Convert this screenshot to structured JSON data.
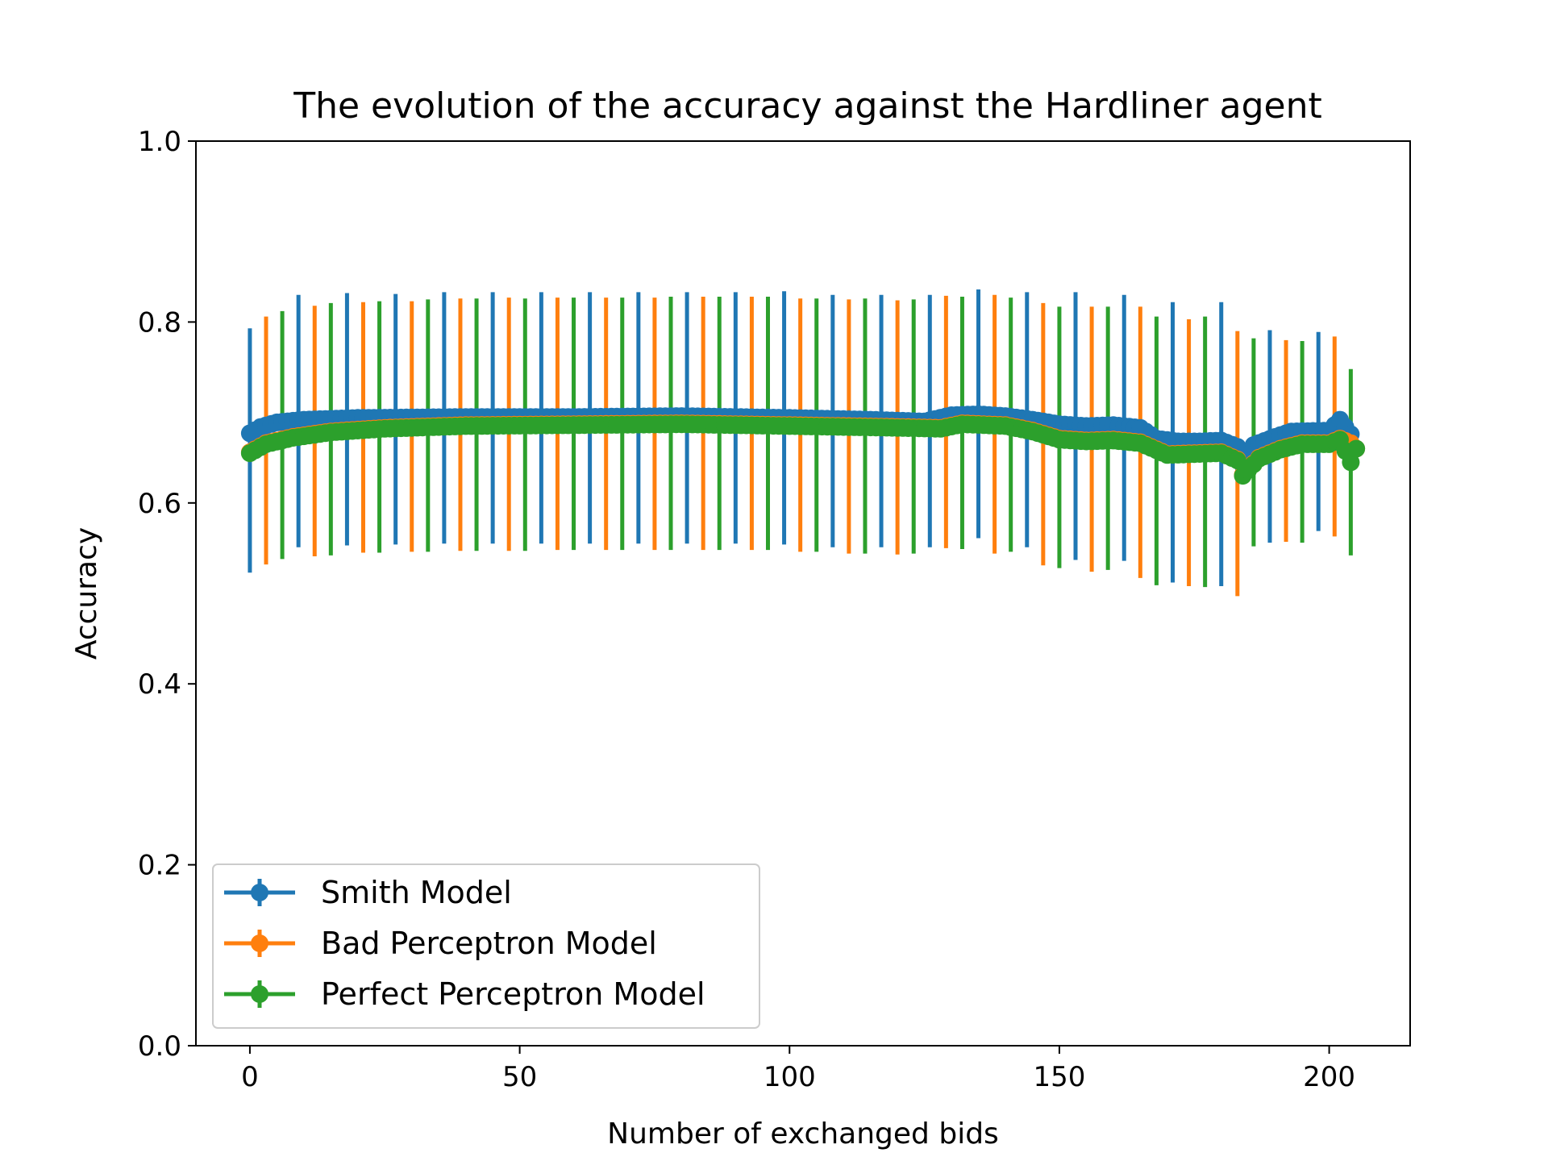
{
  "chart_data": {
    "type": "line",
    "title": "The evolution of the accuracy against the Hardliner agent",
    "xlabel": "Number of exchanged bids",
    "ylabel": "Accuracy",
    "xlim": [
      -10,
      215
    ],
    "ylim": [
      0.0,
      1.0
    ],
    "xticks": [
      "0",
      "50",
      "100",
      "150",
      "200"
    ],
    "xtick_values": [
      0,
      50,
      100,
      150,
      200
    ],
    "yticks": [
      "0.0",
      "0.2",
      "0.4",
      "0.6",
      "0.8",
      "1.0"
    ],
    "ytick_values": [
      0.0,
      0.2,
      0.4,
      0.6,
      0.8,
      1.0
    ],
    "legend_position": "lower-left",
    "series": [
      {
        "name": "Smith Model",
        "color": "#1f77b4",
        "mean_points": [
          [
            0,
            0.677
          ],
          [
            2,
            0.684
          ],
          [
            5,
            0.689
          ],
          [
            10,
            0.692
          ],
          [
            20,
            0.694
          ],
          [
            40,
            0.695
          ],
          [
            60,
            0.695
          ],
          [
            80,
            0.696
          ],
          [
            100,
            0.694
          ],
          [
            115,
            0.692
          ],
          [
            125,
            0.69
          ],
          [
            130,
            0.697
          ],
          [
            135,
            0.698
          ],
          [
            140,
            0.696
          ],
          [
            145,
            0.692
          ],
          [
            150,
            0.687
          ],
          [
            155,
            0.685
          ],
          [
            160,
            0.686
          ],
          [
            165,
            0.683
          ],
          [
            168,
            0.671
          ],
          [
            172,
            0.668
          ],
          [
            176,
            0.668
          ],
          [
            180,
            0.669
          ],
          [
            183,
            0.662
          ],
          [
            184,
            0.642
          ],
          [
            186,
            0.664
          ],
          [
            190,
            0.673
          ],
          [
            193,
            0.679
          ],
          [
            200,
            0.68
          ],
          [
            202,
            0.692
          ],
          [
            204,
            0.676
          ],
          [
            205,
            0.66
          ]
        ],
        "errorbars": [
          [
            0,
            0.523,
            0.793
          ],
          [
            9,
            0.551,
            0.83
          ],
          [
            18,
            0.553,
            0.832
          ],
          [
            27,
            0.554,
            0.831
          ],
          [
            36,
            0.555,
            0.833
          ],
          [
            45,
            0.555,
            0.833
          ],
          [
            54,
            0.555,
            0.833
          ],
          [
            63,
            0.555,
            0.833
          ],
          [
            72,
            0.555,
            0.833
          ],
          [
            81,
            0.555,
            0.833
          ],
          [
            90,
            0.555,
            0.833
          ],
          [
            99,
            0.554,
            0.834
          ],
          [
            108,
            0.551,
            0.83
          ],
          [
            117,
            0.551,
            0.83
          ],
          [
            126,
            0.551,
            0.83
          ],
          [
            135,
            0.561,
            0.836
          ],
          [
            144,
            0.551,
            0.833
          ],
          [
            153,
            0.537,
            0.833
          ],
          [
            162,
            0.536,
            0.83
          ],
          [
            171,
            0.512,
            0.822
          ],
          [
            180,
            0.508,
            0.822
          ],
          [
            189,
            0.556,
            0.791
          ],
          [
            198,
            0.569,
            0.789
          ]
        ]
      },
      {
        "name": "Bad Perceptron Model",
        "color": "#ff7f0e",
        "mean_points": [
          [
            0,
            0.656
          ],
          [
            3,
            0.666
          ],
          [
            8,
            0.673
          ],
          [
            15,
            0.679
          ],
          [
            25,
            0.683
          ],
          [
            40,
            0.686
          ],
          [
            60,
            0.687
          ],
          [
            80,
            0.688
          ],
          [
            100,
            0.686
          ],
          [
            120,
            0.684
          ],
          [
            128,
            0.683
          ],
          [
            132,
            0.688
          ],
          [
            140,
            0.686
          ],
          [
            145,
            0.68
          ],
          [
            150,
            0.671
          ],
          [
            155,
            0.669
          ],
          [
            160,
            0.67
          ],
          [
            165,
            0.667
          ],
          [
            170,
            0.654
          ],
          [
            175,
            0.655
          ],
          [
            180,
            0.656
          ],
          [
            183,
            0.648
          ],
          [
            184,
            0.631
          ],
          [
            187,
            0.65
          ],
          [
            191,
            0.66
          ],
          [
            195,
            0.666
          ],
          [
            200,
            0.666
          ],
          [
            202,
            0.671
          ],
          [
            204,
            0.666
          ],
          [
            205,
            0.66
          ]
        ],
        "errorbars": [
          [
            3,
            0.532,
            0.806
          ],
          [
            12,
            0.541,
            0.818
          ],
          [
            21,
            0.545,
            0.822
          ],
          [
            30,
            0.546,
            0.823
          ],
          [
            39,
            0.547,
            0.826
          ],
          [
            48,
            0.547,
            0.827
          ],
          [
            57,
            0.548,
            0.827
          ],
          [
            66,
            0.548,
            0.827
          ],
          [
            75,
            0.548,
            0.827
          ],
          [
            84,
            0.548,
            0.828
          ],
          [
            93,
            0.548,
            0.828
          ],
          [
            102,
            0.546,
            0.826
          ],
          [
            111,
            0.544,
            0.825
          ],
          [
            120,
            0.543,
            0.824
          ],
          [
            129,
            0.55,
            0.829
          ],
          [
            138,
            0.544,
            0.83
          ],
          [
            147,
            0.531,
            0.821
          ],
          [
            156,
            0.524,
            0.817
          ],
          [
            165,
            0.517,
            0.817
          ],
          [
            174,
            0.508,
            0.803
          ],
          [
            183,
            0.497,
            0.79
          ],
          [
            192,
            0.557,
            0.78
          ],
          [
            201,
            0.563,
            0.784
          ]
        ]
      },
      {
        "name": "Perfect Perceptron Model",
        "color": "#2ca02c",
        "mean_points": [
          [
            0,
            0.655
          ],
          [
            3,
            0.665
          ],
          [
            8,
            0.672
          ],
          [
            15,
            0.678
          ],
          [
            25,
            0.682
          ],
          [
            40,
            0.685
          ],
          [
            60,
            0.686
          ],
          [
            80,
            0.687
          ],
          [
            100,
            0.685
          ],
          [
            120,
            0.683
          ],
          [
            128,
            0.682
          ],
          [
            132,
            0.687
          ],
          [
            140,
            0.685
          ],
          [
            145,
            0.679
          ],
          [
            150,
            0.67
          ],
          [
            155,
            0.668
          ],
          [
            160,
            0.669
          ],
          [
            165,
            0.666
          ],
          [
            170,
            0.653
          ],
          [
            175,
            0.654
          ],
          [
            180,
            0.655
          ],
          [
            183,
            0.647
          ],
          [
            184,
            0.63
          ],
          [
            187,
            0.649
          ],
          [
            191,
            0.659
          ],
          [
            195,
            0.665
          ],
          [
            200,
            0.665
          ],
          [
            202,
            0.67
          ],
          [
            204,
            0.645
          ],
          [
            205,
            0.66
          ]
        ],
        "errorbars": [
          [
            6,
            0.538,
            0.812
          ],
          [
            15,
            0.542,
            0.821
          ],
          [
            24,
            0.545,
            0.823
          ],
          [
            33,
            0.546,
            0.825
          ],
          [
            42,
            0.547,
            0.826
          ],
          [
            51,
            0.547,
            0.826
          ],
          [
            60,
            0.548,
            0.827
          ],
          [
            69,
            0.548,
            0.827
          ],
          [
            78,
            0.548,
            0.828
          ],
          [
            87,
            0.548,
            0.828
          ],
          [
            96,
            0.548,
            0.828
          ],
          [
            105,
            0.546,
            0.826
          ],
          [
            114,
            0.544,
            0.826
          ],
          [
            123,
            0.544,
            0.825
          ],
          [
            132,
            0.549,
            0.828
          ],
          [
            141,
            0.546,
            0.827
          ],
          [
            150,
            0.528,
            0.817
          ],
          [
            159,
            0.526,
            0.817
          ],
          [
            168,
            0.509,
            0.806
          ],
          [
            177,
            0.507,
            0.806
          ],
          [
            186,
            0.552,
            0.782
          ],
          [
            195,
            0.556,
            0.779
          ],
          [
            204,
            0.542,
            0.748
          ]
        ]
      }
    ]
  }
}
